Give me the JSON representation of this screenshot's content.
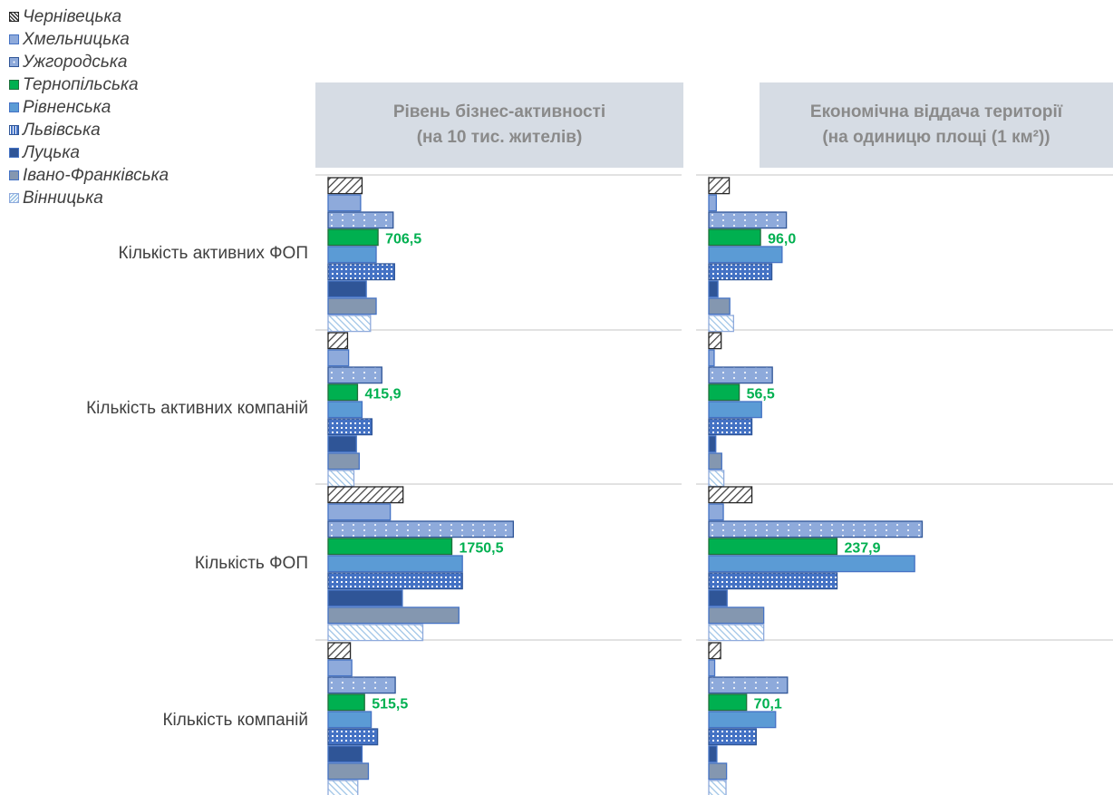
{
  "legend": [
    {
      "label": "Чернівецька",
      "color": "#404040",
      "pattern": "diag"
    },
    {
      "label": "Хмельницька",
      "color": "#8eaadb",
      "pattern": "solid"
    },
    {
      "label": "Ужгородська",
      "color": "#8eaadb",
      "pattern": "dots"
    },
    {
      "label": "Тернопільська",
      "color": "#00b050",
      "pattern": "solid"
    },
    {
      "label": "Рівненська",
      "color": "#5b9bd5",
      "pattern": "solid"
    },
    {
      "label": "Львівська",
      "color": "#4472c4",
      "pattern": "grid"
    },
    {
      "label": "Луцька",
      "color": "#2f5597",
      "pattern": "solid"
    },
    {
      "label": "Івано-Франківська",
      "color": "#8497b0",
      "pattern": "solid"
    },
    {
      "label": "Вінницька",
      "color": "#9dc3e6",
      "pattern": "hatch"
    }
  ],
  "panel1": {
    "title_line1": "Рівень бізнес-активності",
    "title_line2": "(на 10 тис. жителів)"
  },
  "panel2": {
    "title_line1": "Економічна віддача території",
    "title_line2": "(на одиницю площі (1 км²))"
  },
  "chart_data": {
    "type": "bar",
    "orientation": "horizontal",
    "categories": [
      "Кількість активних ФОП",
      "Кількість активних компаній",
      "Кількість ФОП",
      "Кількість компаній"
    ],
    "series_order": [
      "Чернівецька",
      "Хмельницька",
      "Ужгородська",
      "Тернопільська",
      "Рівненська",
      "Львівська",
      "Луцька",
      "Івано-Франківська",
      "Вінницька"
    ],
    "highlight_series": "Тернопільська",
    "panels": [
      {
        "xlim": [
          0,
          2000
        ],
        "values": [
          [
            480,
            460,
            920,
            706.5,
            680,
            940,
            540,
            680,
            600
          ],
          [
            275,
            290,
            760,
            415.9,
            480,
            620,
            400,
            440,
            365
          ],
          [
            1060,
            880,
            2620,
            1750.5,
            1900,
            1900,
            1050,
            1850,
            1340
          ],
          [
            315,
            335,
            950,
            515.5,
            610,
            700,
            480,
            570,
            420
          ]
        ],
        "labels": [
          "706,5",
          "415,9",
          "1750,5",
          "515,5"
        ]
      },
      {
        "xlim": [
          0,
          300
        ],
        "values": [
          [
            38,
            14,
            144,
            96.0,
            136,
            117,
            17,
            39,
            46
          ],
          [
            23,
            10,
            118,
            56.5,
            98,
            80,
            13,
            24,
            28
          ],
          [
            80,
            27,
            396,
            237.9,
            382,
            238,
            34,
            102,
            102
          ],
          [
            22,
            11,
            146,
            70.1,
            124,
            88,
            15,
            33,
            32
          ]
        ],
        "labels": [
          "96,0",
          "56,5",
          "237,9",
          "70,1"
        ]
      }
    ]
  }
}
